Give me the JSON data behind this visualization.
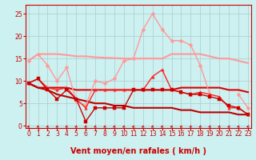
{
  "bg_color": "#cdf0f0",
  "grid_color": "#aacccc",
  "xlabel": "Vent moyen/en rafales ( km/h )",
  "xlabel_color": "#cc0000",
  "xlabel_fontsize": 7,
  "xticks": [
    0,
    1,
    2,
    3,
    4,
    5,
    6,
    7,
    8,
    9,
    10,
    11,
    12,
    13,
    14,
    15,
    16,
    17,
    18,
    19,
    20,
    21,
    22,
    23
  ],
  "yticks": [
    0,
    5,
    10,
    15,
    20,
    25
  ],
  "ylim": [
    -0.5,
    27
  ],
  "xlim": [
    -0.3,
    23.3
  ],
  "series": [
    {
      "label": "line1_light_flat",
      "color": "#ff9999",
      "linewidth": 1.5,
      "marker": null,
      "zorder": 2,
      "y": [
        14.5,
        16.0,
        16.0,
        16.0,
        15.8,
        15.5,
        15.5,
        15.3,
        15.2,
        15.1,
        15.0,
        15.0,
        15.0,
        15.0,
        15.0,
        16.0,
        16.0,
        16.0,
        16.0,
        15.5,
        15.0,
        15.0,
        14.5,
        14.0
      ]
    },
    {
      "label": "line2_pink_peaked",
      "color": "#ff9999",
      "linewidth": 1.0,
      "marker": "D",
      "markersize": 2.5,
      "zorder": 3,
      "y": [
        14.5,
        16.0,
        13.5,
        10.0,
        13.0,
        5.5,
        4.5,
        10.0,
        9.5,
        10.5,
        14.5,
        15.0,
        21.5,
        25.0,
        21.5,
        19.0,
        19.0,
        18.0,
        13.5,
        7.0,
        null,
        null,
        7.0,
        4.0
      ]
    },
    {
      "label": "line4_red_flat",
      "color": "#dd0000",
      "linewidth": 1.5,
      "marker": null,
      "zorder": 2,
      "y": [
        9.5,
        8.5,
        8.5,
        8.5,
        8.5,
        8.0,
        8.0,
        8.0,
        8.0,
        8.0,
        8.0,
        8.0,
        8.0,
        8.0,
        8.0,
        8.0,
        8.5,
        8.5,
        8.5,
        8.5,
        8.5,
        8.0,
        8.0,
        7.5
      ]
    },
    {
      "label": "line5_red_wavy",
      "color": "#ff2222",
      "linewidth": 1.0,
      "marker": "^",
      "markersize": 2.5,
      "zorder": 4,
      "y": [
        9.5,
        10.5,
        8.5,
        8.0,
        8.5,
        6.0,
        4.0,
        8.0,
        8.0,
        8.0,
        8.0,
        8.0,
        8.0,
        11.0,
        12.5,
        8.0,
        7.5,
        7.0,
        7.5,
        7.0,
        6.5,
        4.0,
        4.0,
        2.5
      ]
    },
    {
      "label": "line6_darkred_lower",
      "color": "#cc0000",
      "linewidth": 1.0,
      "marker": "s",
      "markersize": 2.5,
      "zorder": 4,
      "y": [
        9.5,
        10.5,
        8.0,
        6.0,
        8.0,
        6.0,
        1.0,
        4.0,
        4.0,
        4.0,
        4.0,
        8.0,
        8.0,
        8.0,
        8.0,
        8.0,
        7.5,
        7.0,
        7.0,
        6.5,
        6.0,
        4.5,
        4.0,
        2.5
      ]
    },
    {
      "label": "line7_red_descending",
      "color": "#bb0000",
      "linewidth": 1.5,
      "marker": null,
      "zorder": 2,
      "y": [
        9.5,
        8.5,
        8.0,
        7.0,
        6.5,
        6.0,
        5.5,
        5.0,
        5.0,
        4.5,
        4.5,
        4.0,
        4.0,
        4.0,
        4.0,
        4.0,
        3.5,
        3.5,
        3.0,
        3.0,
        3.0,
        3.0,
        2.5,
        2.5
      ]
    }
  ],
  "arrow_color": "#cc0000",
  "tick_color": "#cc0000",
  "tick_fontsize": 5.5
}
